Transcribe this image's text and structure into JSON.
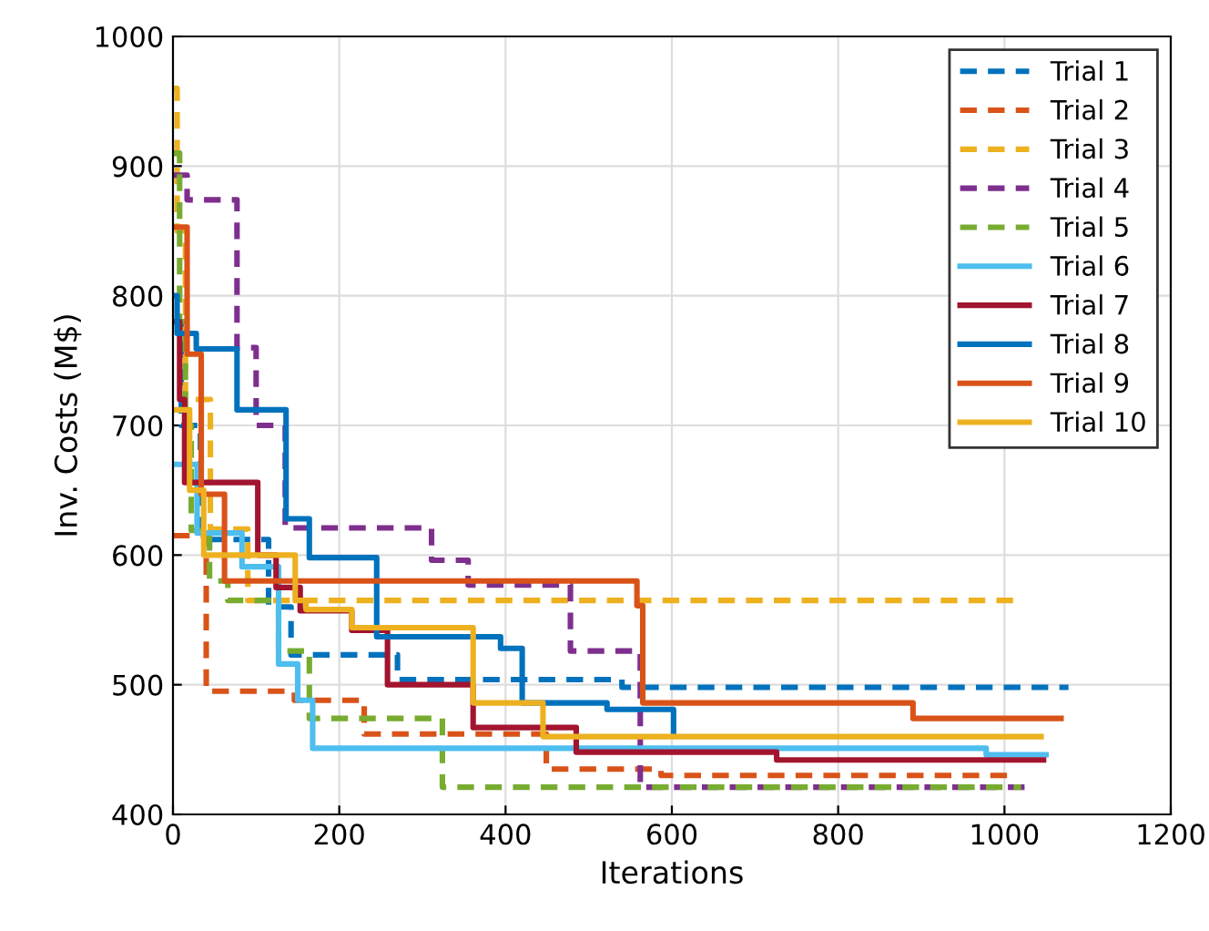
{
  "chart_data": {
    "type": "step",
    "xlabel": "Iterations",
    "ylabel": "Inv. Costs (M$)",
    "xlim": [
      0,
      1200
    ],
    "xticks": [
      0,
      200,
      400,
      600,
      800,
      1000,
      1200
    ],
    "ylim": [
      400,
      1000
    ],
    "yticks": [
      400,
      500,
      600,
      700,
      800,
      900,
      1000
    ],
    "grid": true,
    "legend": "top right",
    "series": [
      {
        "name": "Trial 1",
        "color": "#0072bd",
        "line_style": "dashed",
        "x": [
          0,
          10,
          33,
          115,
          142,
          270,
          540,
          1077
        ],
        "values": [
          780,
          700,
          612,
          560,
          523,
          504,
          498,
          498
        ]
      },
      {
        "name": "Trial 2",
        "color": "#d95319",
        "line_style": "dashed",
        "x": [
          0,
          40,
          146,
          230,
          449,
          587,
          1011
        ],
        "values": [
          615,
          495,
          488,
          462,
          435,
          430,
          430
        ]
      },
      {
        "name": "Trial 3",
        "color": "#edb120",
        "line_style": "dashed",
        "x": [
          0,
          5,
          15,
          45,
          90,
          1012
        ],
        "values": [
          960,
          850,
          720,
          620,
          565,
          565
        ]
      },
      {
        "name": "Trial 4",
        "color": "#7e2f8e",
        "line_style": "dashed",
        "x": [
          0,
          17,
          77,
          100,
          135,
          311,
          355,
          478,
          562,
          1025
        ],
        "values": [
          893,
          874,
          760,
          700,
          621,
          596,
          577,
          526,
          421,
          421
        ]
      },
      {
        "name": "Trial 5",
        "color": "#77ac30",
        "line_style": "dashed",
        "x": [
          0,
          8,
          15,
          22,
          44,
          66,
          127,
          164,
          324,
          1020
        ],
        "values": [
          910,
          780,
          700,
          619,
          580,
          565,
          526,
          474,
          421,
          421
        ]
      },
      {
        "name": "Trial 6",
        "color": "#4dbeee",
        "line_style": "solid",
        "x": [
          0,
          29,
          83,
          127,
          150,
          168,
          978,
          1050
        ],
        "values": [
          670,
          617,
          591,
          516,
          488,
          451,
          446,
          446
        ]
      },
      {
        "name": "Trial 7",
        "color": "#a2142f",
        "line_style": "solid",
        "x": [
          0,
          8,
          14,
          102,
          124,
          153,
          215,
          258,
          361,
          485,
          726,
          1047
        ],
        "values": [
          780,
          720,
          656,
          600,
          575,
          557,
          542,
          500,
          467,
          448,
          442,
          442
        ]
      },
      {
        "name": "Trial 8",
        "color": "#0072bd",
        "line_style": "solid",
        "x": [
          0,
          5,
          28,
          77,
          136,
          164,
          245,
          394,
          420,
          522,
          602
        ],
        "values": [
          800,
          771,
          759,
          712,
          628,
          598,
          537,
          528,
          486,
          481,
          463
        ]
      },
      {
        "name": "Trial 9",
        "color": "#d95319",
        "line_style": "solid",
        "x": [
          0,
          17,
          34,
          62,
          558,
          565,
          890,
          1068
        ],
        "values": [
          853,
          755,
          647,
          580,
          561,
          486,
          474,
          474
        ]
      },
      {
        "name": "Trial 10",
        "color": "#edb120",
        "line_style": "solid",
        "x": [
          0,
          20,
          37,
          147,
          160,
          215,
          361,
          445,
          1044
        ],
        "values": [
          712,
          650,
          600,
          565,
          558,
          544,
          486,
          460,
          460
        ]
      }
    ]
  }
}
